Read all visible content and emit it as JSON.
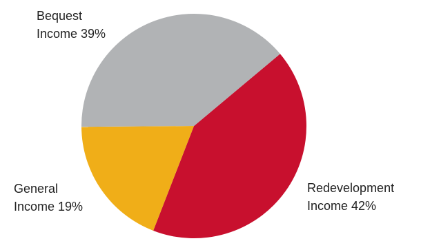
{
  "chart_data": {
    "type": "pie",
    "slices": [
      {
        "name": "Redevelopment Income",
        "value": 42,
        "label_lines": [
          "Redevelopment",
          "Income 42%"
        ],
        "color": "#c8102e"
      },
      {
        "name": "General Income",
        "value": 19,
        "label_lines": [
          "General",
          "Income 19%"
        ],
        "color": "#f0ae18"
      },
      {
        "name": "Bequest Income",
        "value": 39,
        "label_lines": [
          "Bequest",
          "Income 39%"
        ],
        "color": "#b1b3b5"
      }
    ]
  }
}
